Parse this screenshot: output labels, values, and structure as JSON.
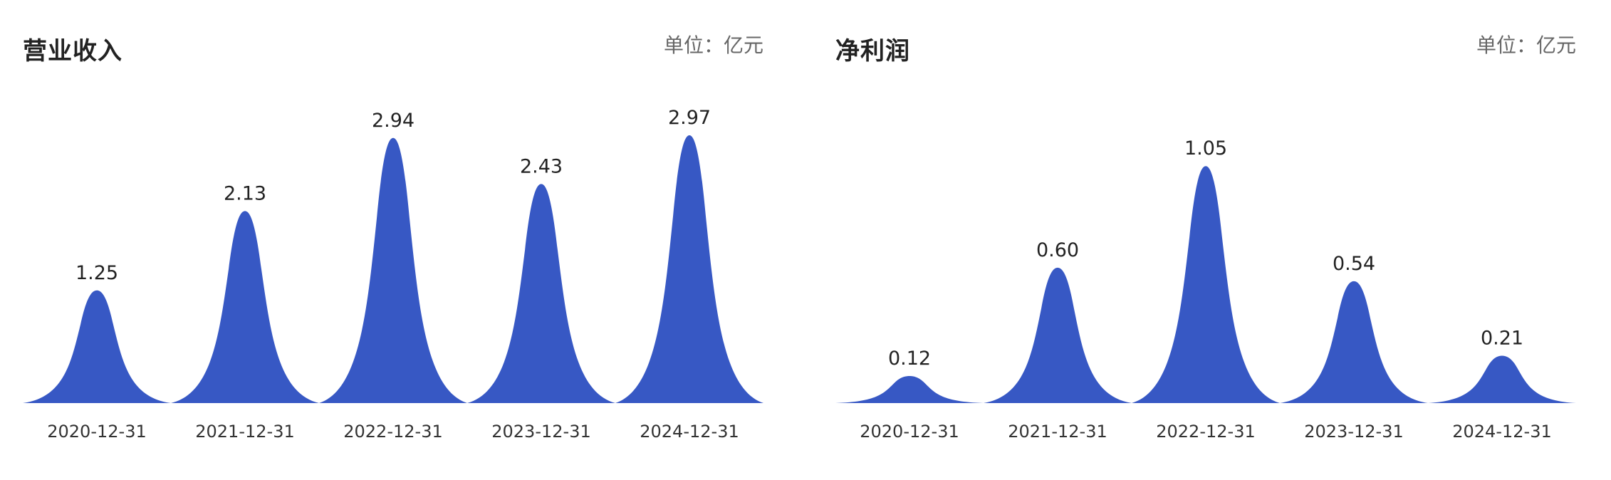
{
  "colors": {
    "fill": "#3758c4",
    "title": "#222222",
    "unit": "#666666"
  },
  "chart_data": [
    {
      "type": "area",
      "title": "营业收入",
      "unit_label": "单位：亿元",
      "categories": [
        "2020-12-31",
        "2021-12-31",
        "2022-12-31",
        "2023-12-31",
        "2024-12-31"
      ],
      "values": [
        1.25,
        2.13,
        2.94,
        2.43,
        2.97
      ],
      "value_labels": [
        "1.25",
        "2.13",
        "2.94",
        "2.43",
        "2.97"
      ],
      "xlabel": "",
      "ylabel": "亿元",
      "grid": false,
      "legend": false
    },
    {
      "type": "area",
      "title": "净利润",
      "unit_label": "单位：亿元",
      "categories": [
        "2020-12-31",
        "2021-12-31",
        "2022-12-31",
        "2023-12-31",
        "2024-12-31"
      ],
      "values": [
        0.12,
        0.6,
        1.05,
        0.54,
        0.21
      ],
      "value_labels": [
        "0.12",
        "0.60",
        "1.05",
        "0.54",
        "0.21"
      ],
      "xlabel": "",
      "ylabel": "亿元",
      "grid": false,
      "legend": false
    }
  ]
}
